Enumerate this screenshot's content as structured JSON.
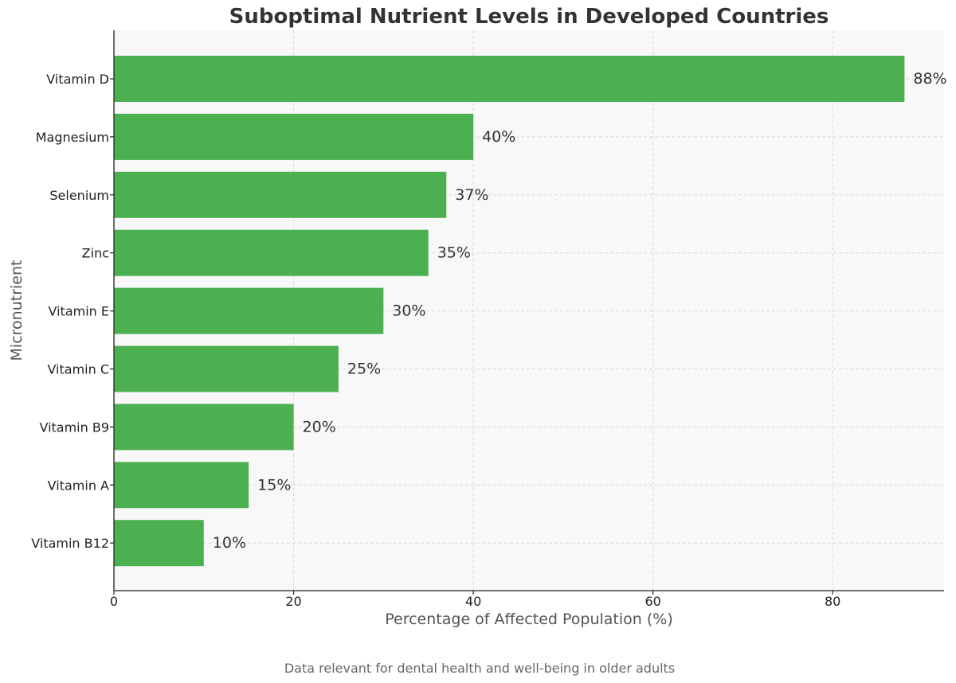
{
  "chart_data": {
    "type": "bar",
    "orientation": "horizontal",
    "title": "Suboptimal Nutrient Levels in Developed Countries",
    "xlabel": "Percentage of Affected Population (%)",
    "ylabel": "Micronutrient",
    "categories": [
      "Vitamin D",
      "Magnesium",
      "Selenium",
      "Zinc",
      "Vitamin E",
      "Vitamin C",
      "Vitamin B9",
      "Vitamin A",
      "Vitamin B12"
    ],
    "values": [
      88,
      40,
      37,
      35,
      30,
      25,
      20,
      15,
      10
    ],
    "value_labels": [
      "88%",
      "40%",
      "37%",
      "35%",
      "30%",
      "25%",
      "20%",
      "15%",
      "10%"
    ],
    "xlim": [
      0,
      92.4
    ],
    "xticks": [
      0,
      20,
      40,
      60,
      80
    ],
    "grid": true,
    "bar_color": "#4caf50",
    "plot_background": "#f8f8f8"
  },
  "footnote": "Data relevant for dental health and well-being in older adults"
}
